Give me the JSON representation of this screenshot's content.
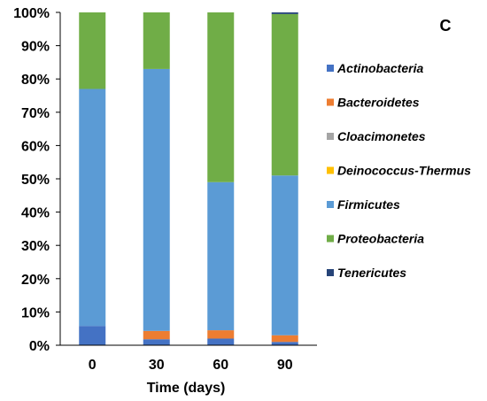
{
  "chart_data": {
    "type": "bar",
    "stacked": true,
    "panel_label": "C",
    "title": "",
    "xlabel": "Time (days)",
    "ylabel": "",
    "ylim": [
      0,
      100
    ],
    "y_ticks": [
      "0%",
      "10%",
      "20%",
      "30%",
      "40%",
      "50%",
      "60%",
      "70%",
      "80%",
      "90%",
      "100%"
    ],
    "categories": [
      "0",
      "30",
      "60",
      "90"
    ],
    "legend_position": "right",
    "series": [
      {
        "name": "Actinobacteria",
        "color": "#4472c4",
        "values": [
          5.8,
          1.8,
          2.0,
          1.0
        ]
      },
      {
        "name": "Bacteroidetes",
        "color": "#ed7d31",
        "values": [
          0,
          2.5,
          2.5,
          2.0
        ]
      },
      {
        "name": "Cloacimonetes",
        "color": "#a5a5a5",
        "values": [
          0,
          0,
          0,
          0
        ]
      },
      {
        "name": "Deinococcus-Thermus",
        "color": "#ffc000",
        "values": [
          0,
          0,
          0,
          0
        ]
      },
      {
        "name": "Firmicutes",
        "color": "#5b9bd5",
        "values": [
          71.2,
          78.7,
          44.5,
          48.0
        ]
      },
      {
        "name": "Proteobacteria",
        "color": "#70ad47",
        "values": [
          23.0,
          17.0,
          51.0,
          48.5
        ]
      },
      {
        "name": "Tenericutes",
        "color": "#264478",
        "values": [
          0,
          0,
          0,
          0.5
        ]
      }
    ]
  }
}
